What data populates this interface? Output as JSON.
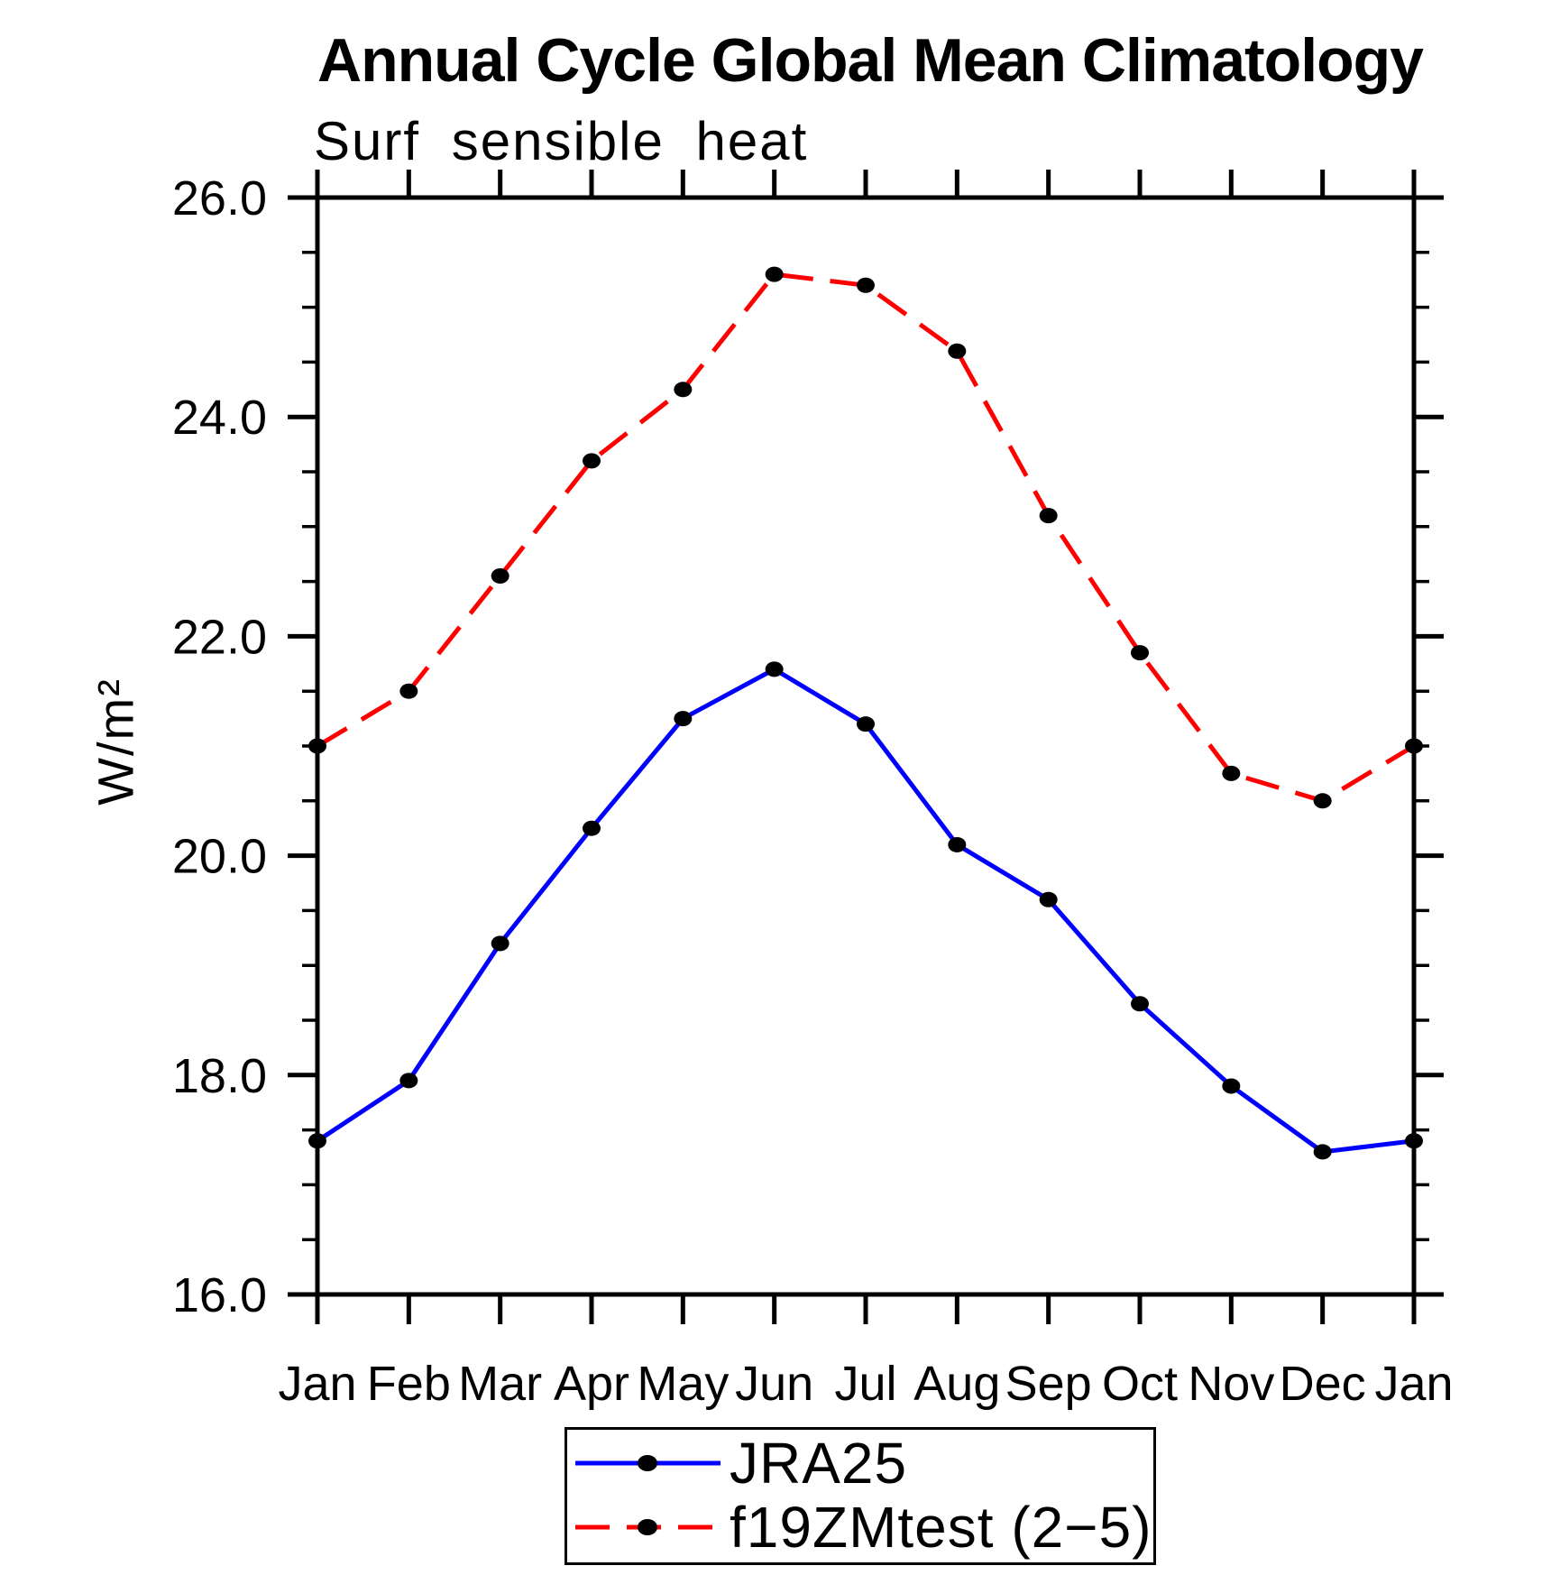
{
  "chart": {
    "title": "Annual Cycle Global Mean Climatology",
    "subtitle": "Surf sensible heat",
    "ylabel": "W/m²"
  },
  "chart_data": {
    "type": "line",
    "title": "Annual Cycle Global Mean Climatology",
    "subtitle": "Surf sensible heat",
    "xlabel": "",
    "ylabel": "W/m²",
    "categories": [
      "Jan",
      "Feb",
      "Mar",
      "Apr",
      "May",
      "Jun",
      "Jul",
      "Aug",
      "Sep",
      "Oct",
      "Nov",
      "Dec",
      "Jan"
    ],
    "y_tick_labels": [
      "16.0",
      "18.0",
      "20.0",
      "22.0",
      "24.0",
      "26.0"
    ],
    "ylim": [
      16.0,
      26.0
    ],
    "y_major_step": 2.0,
    "y_minor_step": 0.5,
    "grid": false,
    "legend_position": "bottom-center",
    "axis_color": "#000000",
    "marker_color": "#000000",
    "series": [
      {
        "name": "JRA25",
        "color": "#0000ff",
        "style": "solid",
        "marker": "filled-circle",
        "values": [
          17.4,
          17.95,
          19.2,
          20.25,
          21.25,
          21.7,
          21.2,
          20.1,
          19.6,
          18.65,
          17.9,
          17.3,
          17.4
        ]
      },
      {
        "name": "f19ZMtest (2−5)",
        "color": "#ff0000",
        "style": "dashed",
        "marker": "filled-circle",
        "values": [
          21.0,
          21.5,
          22.55,
          23.6,
          24.25,
          25.3,
          25.2,
          24.6,
          23.1,
          21.85,
          20.75,
          20.5,
          21.0
        ]
      }
    ]
  }
}
